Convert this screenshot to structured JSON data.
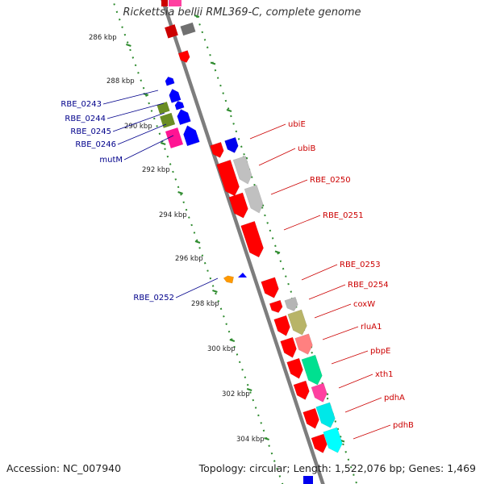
{
  "title": "Rickettsia bellii RML369-C, complete genome",
  "footer": {
    "accession": "Accession: NC_007940",
    "summary": "Topology: circular; Length: 1,522,076 bp; Genes: 1,469"
  },
  "scale_labels": [
    "286 kbp",
    "288 kbp",
    "290 kbp",
    "292 kbp",
    "294 kbp",
    "296 kbp",
    "298 kbp",
    "300 kbp",
    "302 kbp",
    "304 kbp"
  ],
  "colors": {
    "backbone": "#8a8a8a",
    "ruler": "#2e8b2e",
    "left_label": "#00008b",
    "right_label": "#cc0000",
    "forward_gene": "#ff0000",
    "reverse_gene": "#0000ff"
  },
  "left_labels": [
    "RBE_0243",
    "RBE_0244",
    "RBE_0245",
    "RBE_0246",
    "mutM",
    "RBE_0252"
  ],
  "right_labels": [
    "ubiE",
    "ubiB",
    "RBE_0250",
    "RBE_0251",
    "RBE_0253",
    "RBE_0254",
    "coxW",
    "rluA1",
    "pbpE",
    "xth1",
    "pdhA",
    "pdhB"
  ]
}
